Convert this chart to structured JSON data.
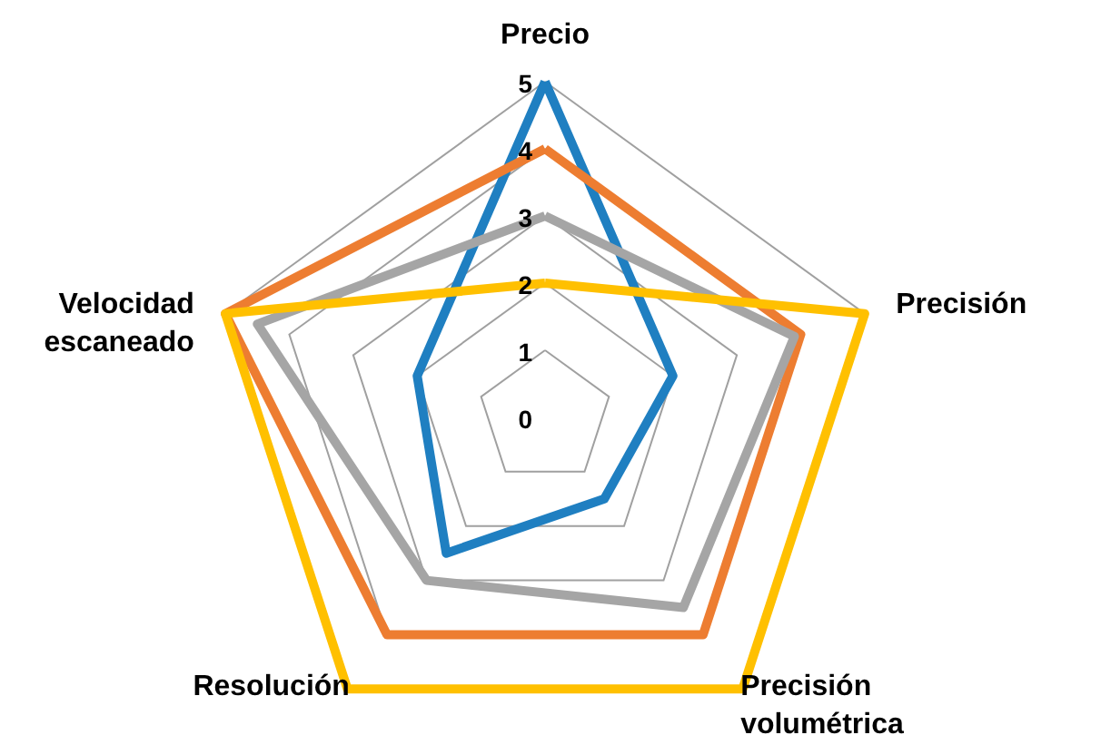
{
  "chart_data": {
    "type": "radar",
    "categories": [
      "Precio",
      "Precisión",
      "Precisión volumétrica",
      "Resolución",
      "Velocidad escaneado"
    ],
    "series": [
      {
        "color": "#1f7fc1",
        "values": [
          5,
          2,
          1.5,
          2.5,
          2
        ]
      },
      {
        "color": "#ed7d31",
        "values": [
          4,
          4,
          4,
          4,
          5
        ]
      },
      {
        "color": "#a5a5a5",
        "values": [
          3,
          3.9,
          3.5,
          3,
          4.5
        ]
      },
      {
        "color": "#ffc000",
        "values": [
          2,
          5,
          5,
          5,
          5
        ]
      }
    ],
    "ylim": [
      0,
      5
    ],
    "yticks": [
      0,
      1,
      2,
      3,
      4,
      5
    ],
    "grid": true
  }
}
